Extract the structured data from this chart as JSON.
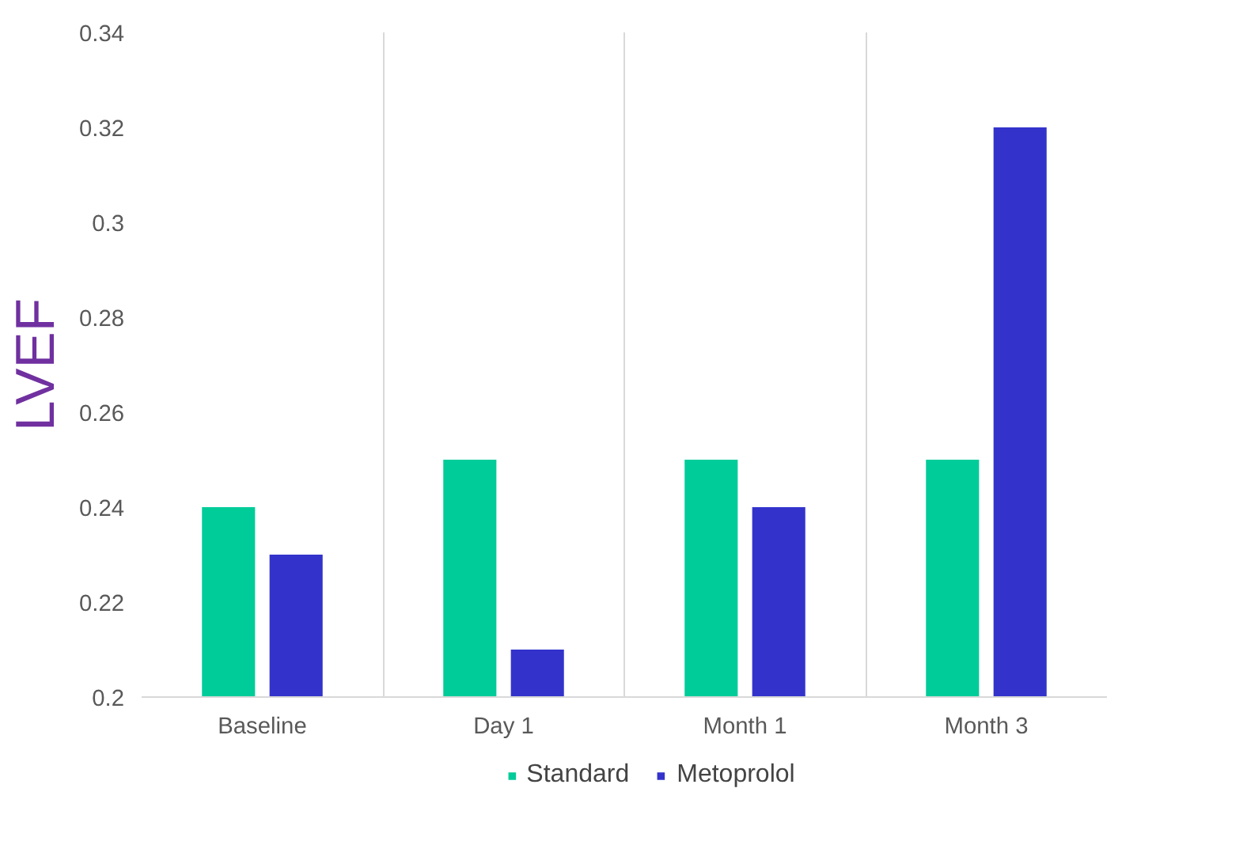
{
  "chart_data": {
    "type": "bar",
    "ylabel": "LVEF",
    "categories": [
      "Baseline",
      "Day 1",
      "Month 1",
      "Month 3"
    ],
    "series": [
      {
        "name": "Standard",
        "color": "#00cc99",
        "values": [
          0.24,
          0.25,
          0.25,
          0.25
        ]
      },
      {
        "name": "Metoprolol",
        "color": "#3333cc",
        "values": [
          0.23,
          0.21,
          0.24,
          0.32
        ]
      }
    ],
    "ylim": [
      0.2,
      0.34
    ],
    "yticks": [
      0.2,
      0.22,
      0.24,
      0.26,
      0.28,
      0.3,
      0.32,
      0.34
    ],
    "grid": "x",
    "legend": "bottom"
  }
}
